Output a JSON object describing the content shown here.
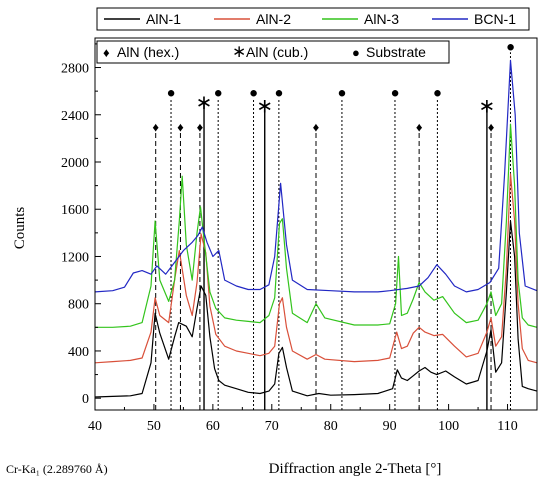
{
  "chart_data": {
    "type": "line",
    "xlabel": "Diffraction angle 2-Theta [°]",
    "ylabel": "Counts",
    "note": "Cr-Ka₁ (2.289760 Å)",
    "xlim": [
      40,
      115
    ],
    "ylim": [
      -100,
      3050
    ],
    "xticks": [
      40,
      50,
      60,
      70,
      80,
      90,
      100,
      110
    ],
    "yticks": [
      0,
      400,
      800,
      1200,
      1600,
      2000,
      2400,
      2800
    ],
    "grid": false,
    "legend_position": "top",
    "series": [
      {
        "name": "AlN-1",
        "color": "#000000",
        "points": [
          [
            40,
            10
          ],
          [
            43,
            15
          ],
          [
            46,
            20
          ],
          [
            48,
            40
          ],
          [
            49.5,
            300
          ],
          [
            50.2,
            720
          ],
          [
            51,
            550
          ],
          [
            52.5,
            330
          ],
          [
            53.5,
            520
          ],
          [
            54.2,
            640
          ],
          [
            55.5,
            610
          ],
          [
            56.5,
            520
          ],
          [
            57.3,
            760
          ],
          [
            58,
            950
          ],
          [
            58.8,
            870
          ],
          [
            59.5,
            520
          ],
          [
            60.3,
            250
          ],
          [
            61,
            150
          ],
          [
            62,
            110
          ],
          [
            64,
            80
          ],
          [
            66,
            50
          ],
          [
            68,
            40
          ],
          [
            69.5,
            60
          ],
          [
            70.5,
            120
          ],
          [
            71.2,
            380
          ],
          [
            71.8,
            430
          ],
          [
            72.5,
            260
          ],
          [
            73.5,
            60
          ],
          [
            76,
            20
          ],
          [
            78,
            40
          ],
          [
            80,
            25
          ],
          [
            84,
            30
          ],
          [
            88,
            40
          ],
          [
            90.5,
            80
          ],
          [
            91.3,
            240
          ],
          [
            92,
            170
          ],
          [
            93,
            150
          ],
          [
            94,
            190
          ],
          [
            95,
            230
          ],
          [
            96,
            260
          ],
          [
            97,
            220
          ],
          [
            98,
            200
          ],
          [
            99.5,
            230
          ],
          [
            101,
            180
          ],
          [
            103,
            120
          ],
          [
            105,
            150
          ],
          [
            106.5,
            400
          ],
          [
            107.2,
            580
          ],
          [
            108,
            220
          ],
          [
            109,
            300
          ],
          [
            109.8,
            900
          ],
          [
            110.5,
            1500
          ],
          [
            111.2,
            1200
          ],
          [
            111.8,
            500
          ],
          [
            112.5,
            100
          ],
          [
            113.5,
            80
          ],
          [
            115,
            60
          ]
        ]
      },
      {
        "name": "AlN-2",
        "color": "#d9503a",
        "points": [
          [
            40,
            300
          ],
          [
            43,
            310
          ],
          [
            46,
            320
          ],
          [
            48,
            340
          ],
          [
            49.5,
            560
          ],
          [
            50.2,
            850
          ],
          [
            51,
            700
          ],
          [
            52.5,
            640
          ],
          [
            53.5,
            1000
          ],
          [
            54.3,
            1250
          ],
          [
            55.5,
            870
          ],
          [
            56.5,
            700
          ],
          [
            57.3,
            980
          ],
          [
            58,
            1390
          ],
          [
            58.8,
            1230
          ],
          [
            59.5,
            780
          ],
          [
            60.5,
            540
          ],
          [
            62,
            440
          ],
          [
            64,
            400
          ],
          [
            66,
            380
          ],
          [
            68,
            360
          ],
          [
            69.5,
            380
          ],
          [
            70.5,
            440
          ],
          [
            71.3,
            800
          ],
          [
            71.8,
            850
          ],
          [
            72.5,
            600
          ],
          [
            73.5,
            400
          ],
          [
            76,
            330
          ],
          [
            77.5,
            370
          ],
          [
            79,
            330
          ],
          [
            84,
            310
          ],
          [
            88,
            320
          ],
          [
            90,
            340
          ],
          [
            91.2,
            560
          ],
          [
            92,
            420
          ],
          [
            93,
            440
          ],
          [
            94,
            550
          ],
          [
            95,
            600
          ],
          [
            96,
            560
          ],
          [
            97.5,
            530
          ],
          [
            99,
            540
          ],
          [
            101,
            440
          ],
          [
            103,
            350
          ],
          [
            105,
            380
          ],
          [
            106.5,
            560
          ],
          [
            107.2,
            680
          ],
          [
            108,
            440
          ],
          [
            109,
            520
          ],
          [
            109.8,
            1100
          ],
          [
            110.5,
            1900
          ],
          [
            111.2,
            1500
          ],
          [
            111.8,
            800
          ],
          [
            112.5,
            420
          ],
          [
            113.5,
            320
          ],
          [
            115,
            300
          ]
        ]
      },
      {
        "name": "AlN-3",
        "color": "#33c41c",
        "points": [
          [
            40,
            600
          ],
          [
            43,
            600
          ],
          [
            46,
            610
          ],
          [
            48,
            640
          ],
          [
            49.5,
            950
          ],
          [
            50.2,
            1500
          ],
          [
            51,
            1000
          ],
          [
            52.5,
            820
          ],
          [
            53.5,
            1000
          ],
          [
            54.3,
            1500
          ],
          [
            54.8,
            1880
          ],
          [
            55.5,
            1300
          ],
          [
            56.5,
            1000
          ],
          [
            57.3,
            1400
          ],
          [
            57.9,
            1620
          ],
          [
            58.6,
            1300
          ],
          [
            59.5,
            900
          ],
          [
            60.5,
            760
          ],
          [
            62,
            680
          ],
          [
            64,
            660
          ],
          [
            66,
            650
          ],
          [
            68,
            640
          ],
          [
            69.5,
            700
          ],
          [
            70.5,
            850
          ],
          [
            71.3,
            1480
          ],
          [
            71.8,
            1520
          ],
          [
            72.5,
            1100
          ],
          [
            73.5,
            720
          ],
          [
            76,
            640
          ],
          [
            77.5,
            800
          ],
          [
            79,
            680
          ],
          [
            84,
            620
          ],
          [
            88,
            620
          ],
          [
            90,
            630
          ],
          [
            91,
            800
          ],
          [
            91.5,
            1200
          ],
          [
            92,
            700
          ],
          [
            93,
            720
          ],
          [
            94,
            840
          ],
          [
            95,
            980
          ],
          [
            96,
            900
          ],
          [
            97.5,
            830
          ],
          [
            99,
            860
          ],
          [
            101,
            720
          ],
          [
            103,
            640
          ],
          [
            105,
            660
          ],
          [
            106.5,
            800
          ],
          [
            107.2,
            900
          ],
          [
            108,
            700
          ],
          [
            109,
            800
          ],
          [
            109.8,
            1500
          ],
          [
            110.5,
            2320
          ],
          [
            111.2,
            1800
          ],
          [
            111.8,
            1000
          ],
          [
            112.5,
            680
          ],
          [
            113.5,
            620
          ],
          [
            115,
            600
          ]
        ]
      },
      {
        "name": "BCN-1",
        "color": "#2228c4",
        "points": [
          [
            40,
            900
          ],
          [
            43,
            910
          ],
          [
            45,
            940
          ],
          [
            46.5,
            1060
          ],
          [
            48,
            1080
          ],
          [
            49.5,
            1050
          ],
          [
            50.5,
            1120
          ],
          [
            52,
            1050
          ],
          [
            53.5,
            1150
          ],
          [
            55,
            1250
          ],
          [
            56.5,
            1320
          ],
          [
            57.5,
            1380
          ],
          [
            58.2,
            1450
          ],
          [
            59,
            1320
          ],
          [
            60,
            1200
          ],
          [
            61,
            1250
          ],
          [
            62,
            1000
          ],
          [
            64,
            950
          ],
          [
            66,
            920
          ],
          [
            68,
            920
          ],
          [
            69.5,
            960
          ],
          [
            70.5,
            1200
          ],
          [
            71.5,
            1820
          ],
          [
            72.5,
            1300
          ],
          [
            73.5,
            1000
          ],
          [
            76,
            920
          ],
          [
            80,
            910
          ],
          [
            84,
            900
          ],
          [
            88,
            900
          ],
          [
            90,
            910
          ],
          [
            93,
            930
          ],
          [
            95,
            950
          ],
          [
            96.5,
            1020
          ],
          [
            98,
            1130
          ],
          [
            99.5,
            1050
          ],
          [
            101,
            950
          ],
          [
            103,
            900
          ],
          [
            105,
            920
          ],
          [
            107,
            980
          ],
          [
            108.5,
            1100
          ],
          [
            109.5,
            1900
          ],
          [
            110.5,
            2860
          ],
          [
            111.3,
            2400
          ],
          [
            112,
            1400
          ],
          [
            113,
            950
          ],
          [
            115,
            910
          ]
        ]
      }
    ],
    "markers": {
      "legend": [
        {
          "symbol": "♦",
          "label": "AlN (hex.)"
        },
        {
          "symbol": "∗",
          "label": "AlN (cub.)"
        },
        {
          "symbol": "●",
          "label": "Substrate"
        }
      ],
      "hex": [
        {
          "x": 50.3,
          "y": 2300
        },
        {
          "x": 54.5,
          "y": 2300
        },
        {
          "x": 57.8,
          "y": 2300
        },
        {
          "x": 77.5,
          "y": 2300
        },
        {
          "x": 95.0,
          "y": 2300
        },
        {
          "x": 107.2,
          "y": 2300
        }
      ],
      "cub": [
        {
          "x": 58.5,
          "y": 2550
        },
        {
          "x": 68.8,
          "y": 2520
        },
        {
          "x": 106.5,
          "y": 2520
        }
      ],
      "substrate": [
        {
          "x": 52.9,
          "y": 2590
        },
        {
          "x": 60.9,
          "y": 2590
        },
        {
          "x": 66.9,
          "y": 2590
        },
        {
          "x": 71.2,
          "y": 2590
        },
        {
          "x": 81.9,
          "y": 2590
        },
        {
          "x": 90.9,
          "y": 2590
        },
        {
          "x": 98.1,
          "y": 2590
        },
        {
          "x": 110.5,
          "y": 2980
        }
      ]
    }
  }
}
